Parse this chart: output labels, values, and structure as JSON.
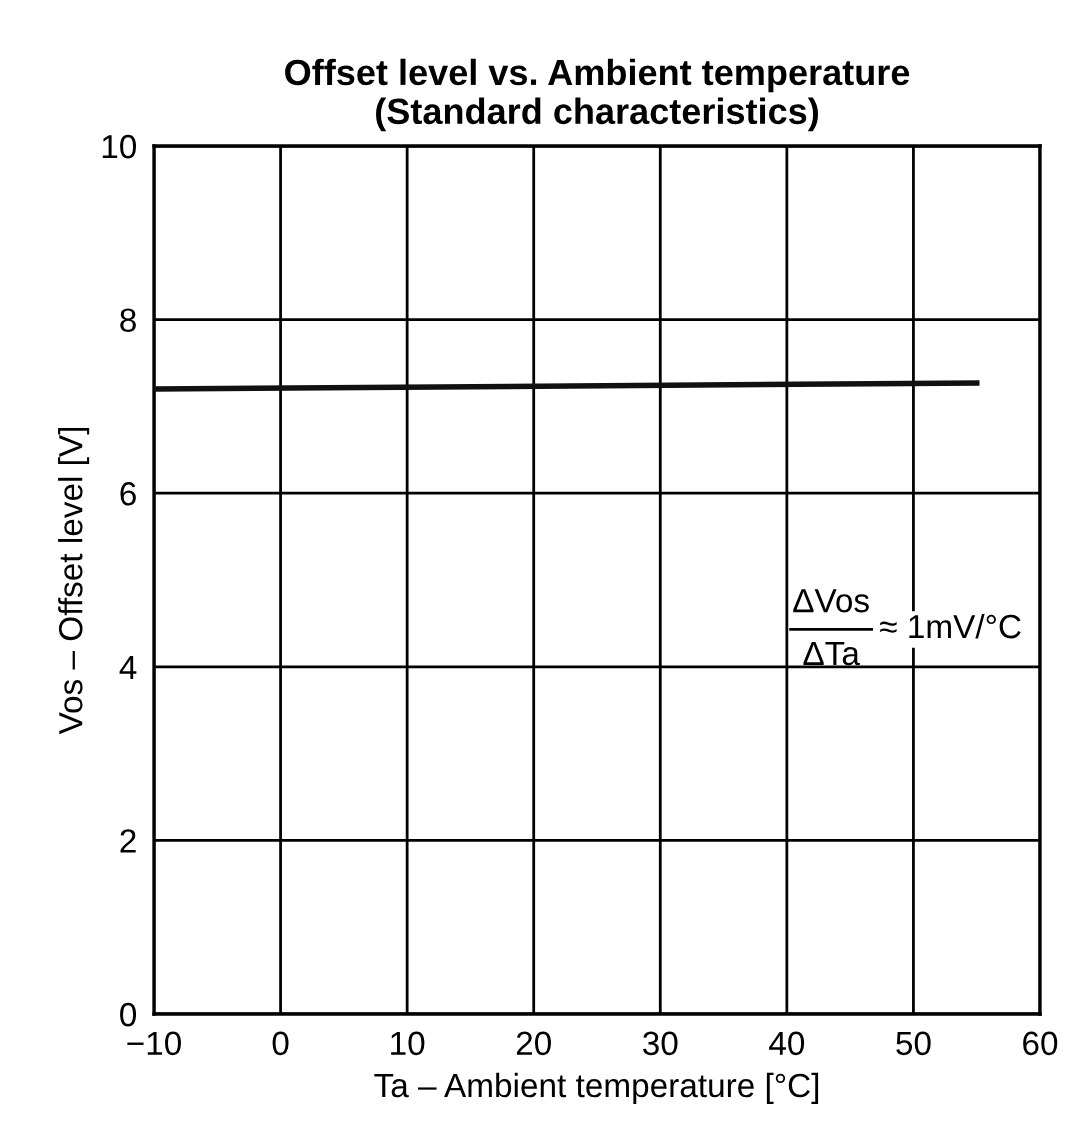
{
  "chart_data": {
    "type": "line",
    "title": "Offset level vs. Ambient temperature\n(Standard characteristics)",
    "xlabel": "Ta – Ambient temperature [°C]",
    "ylabel": "Vos – Offset level [V]",
    "x": [
      -10,
      55
    ],
    "series": [
      {
        "color": "#111111",
        "values": [
          7.2,
          7.27
        ]
      }
    ],
    "xlim": [
      -10,
      60
    ],
    "xticks": [
      {
        "value": -10,
        "label": "−10"
      },
      0,
      10,
      20,
      30,
      40,
      50,
      60
    ],
    "ylim": [
      0,
      10
    ],
    "yticks": [
      0,
      2,
      4,
      6,
      8,
      10
    ],
    "grid": true,
    "marker": "none",
    "line_style": "solid",
    "annotations": [
      "ΔVos",
      "ΔTa",
      "≈ 1mV/°C"
    ]
  }
}
